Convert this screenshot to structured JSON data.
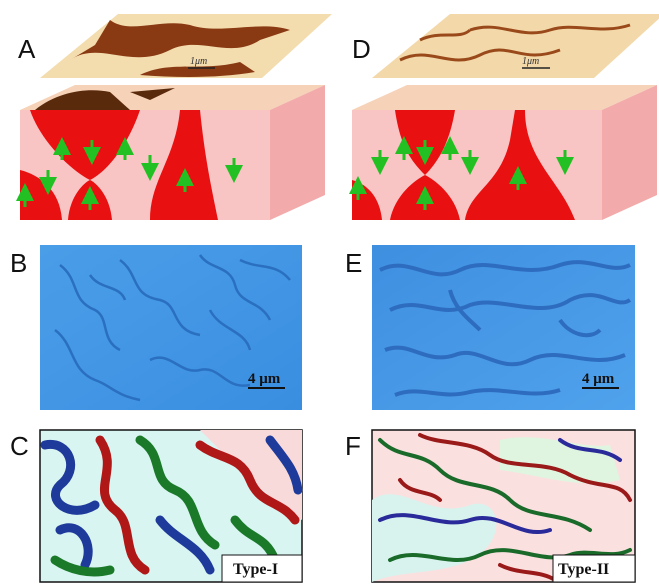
{
  "panels": [
    {
      "label": "A",
      "scale_bar": "1μm"
    },
    {
      "label": "B",
      "scale_bar": "4 μm"
    },
    {
      "label": "C",
      "caption": "Type-I"
    },
    {
      "label": "D",
      "scale_bar": "1μm"
    },
    {
      "label": "E",
      "scale_bar": "4 μm"
    },
    {
      "label": "F",
      "caption": "Type-II"
    }
  ]
}
